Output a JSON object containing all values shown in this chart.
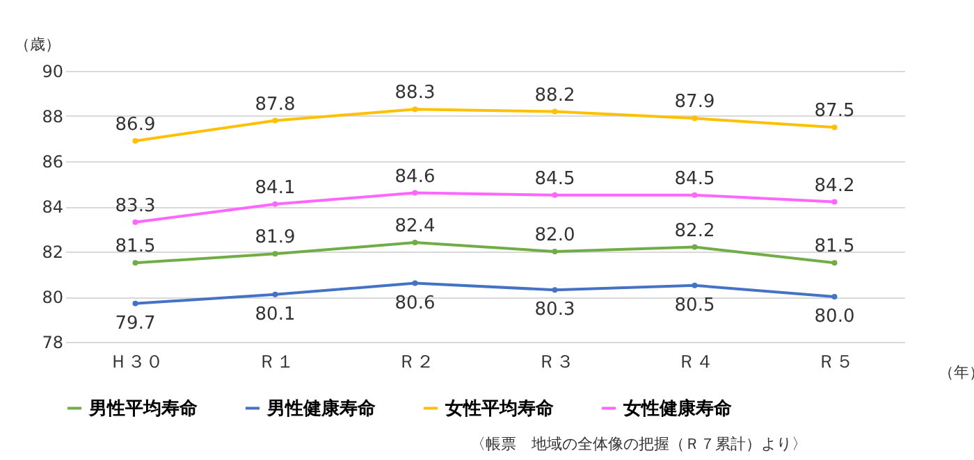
{
  "chart_data": {
    "type": "line",
    "ylabel": "（歳）",
    "xlabel": "（年）",
    "categories": [
      "Ｈ３０",
      "Ｒ１",
      "Ｒ２",
      "Ｒ３",
      "Ｒ４",
      "Ｒ５"
    ],
    "series": [
      {
        "name": "男性平均寿命",
        "color": "#70ad47",
        "values": [
          81.5,
          81.9,
          82.4,
          82.0,
          82.2,
          81.5
        ],
        "value_labels": [
          "81.5",
          "81.9",
          "82.4",
          "82.0",
          "82.2",
          "81.5"
        ]
      },
      {
        "name": "男性健康寿命",
        "color": "#4472c4",
        "values": [
          79.7,
          80.1,
          80.6,
          80.3,
          80.5,
          80.0
        ],
        "value_labels": [
          "79.7",
          "80.1",
          "80.6",
          "80.3",
          "80.5",
          "80.0"
        ]
      },
      {
        "name": "女性平均寿命",
        "color": "#ffc000",
        "values": [
          86.9,
          87.8,
          88.3,
          88.2,
          87.9,
          87.5
        ],
        "value_labels": [
          "86.9",
          "87.8",
          "88.3",
          "88.2",
          "87.9",
          "87.5"
        ]
      },
      {
        "name": "女性健康寿命",
        "color": "#ff66ff",
        "values": [
          83.3,
          84.1,
          84.6,
          84.5,
          84.5,
          84.2
        ],
        "value_labels": [
          "83.3",
          "84.1",
          "84.6",
          "84.5",
          "84.5",
          "84.2"
        ]
      }
    ],
    "ylim": [
      78,
      90
    ],
    "yticks": [
      78,
      80,
      82,
      84,
      86,
      88,
      90
    ],
    "grid": "y",
    "legend": "bottom",
    "marker": "circle",
    "line_style": "solid",
    "annotations": [
      "〈帳票　地域の全体像の把握（Ｒ７累計）より〉"
    ]
  }
}
